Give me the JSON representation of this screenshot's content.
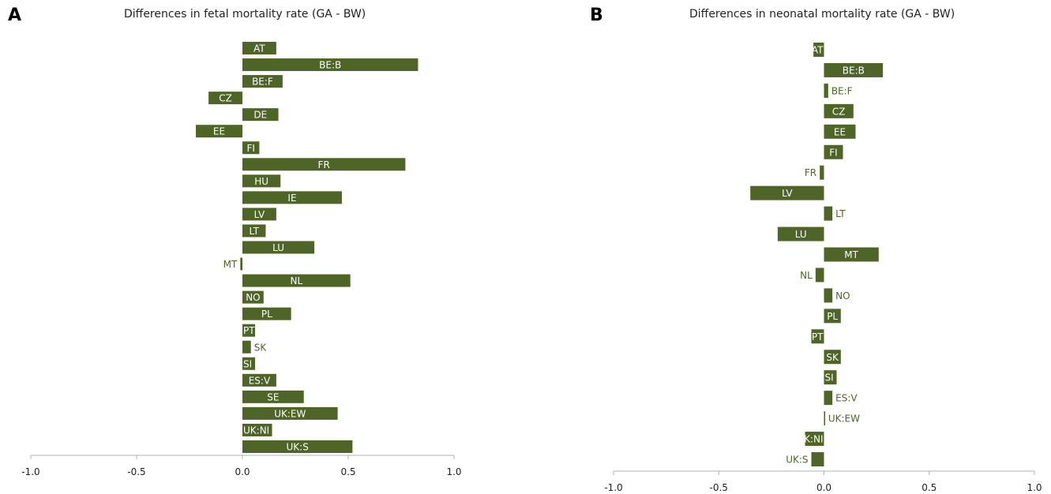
{
  "panels": [
    {
      "letter": "A",
      "title": "Differences in fetal mortality rate (GA - BW)"
    },
    {
      "letter": "B",
      "title": "Differences in neonatal mortality rate (GA - BW)"
    }
  ],
  "chart_data": [
    {
      "type": "bar",
      "orientation": "horizontal",
      "title": "Differences in fetal mortality rate (GA - BW)",
      "xlabel": "",
      "ylabel": "",
      "xlim": [
        -1.0,
        1.0
      ],
      "xticks": [
        "-1.0",
        "-0.5",
        "0.0",
        "0.5",
        "1.0"
      ],
      "xtick_values": [
        -1.0,
        -0.5,
        0.0,
        0.5,
        1.0
      ],
      "grid": false,
      "categories": [
        "AT",
        "BE:B",
        "BE:F",
        "CZ",
        "DE",
        "EE",
        "FI",
        "FR",
        "HU",
        "IE",
        "LV",
        "LT",
        "LU",
        "MT",
        "NL",
        "NO",
        "PL",
        "PT",
        "SK",
        "SI",
        "ES:V",
        "SE",
        "UK:EW",
        "UK:NI",
        "UK:S"
      ],
      "values": [
        0.16,
        0.83,
        0.19,
        -0.16,
        0.17,
        -0.22,
        0.08,
        0.77,
        0.18,
        0.47,
        0.16,
        0.11,
        0.34,
        -0.01,
        0.51,
        0.1,
        0.23,
        0.06,
        0.04,
        0.06,
        0.16,
        0.29,
        0.45,
        0.14,
        0.52
      ],
      "color": "#4e6527"
    },
    {
      "type": "bar",
      "orientation": "horizontal",
      "title": "Differences in neonatal mortality rate (GA - BW)",
      "xlabel": "",
      "ylabel": "",
      "xlim": [
        -1.0,
        1.0
      ],
      "xticks": [
        "-1.0",
        "-0.5",
        "0.0",
        "0.5",
        "1.0"
      ],
      "xtick_values": [
        -1.0,
        -0.5,
        0.0,
        0.5,
        1.0
      ],
      "grid": false,
      "categories": [
        "AT",
        "BE:B",
        "BE:F",
        "CZ",
        "EE",
        "FI",
        "FR",
        "LV",
        "LT",
        "LU",
        "MT",
        "NL",
        "NO",
        "PL",
        "PT",
        "SK",
        "SI",
        "ES:V",
        "UK:EW",
        "UK:NI",
        "UK:S"
      ],
      "values": [
        -0.05,
        0.28,
        0.02,
        0.14,
        0.15,
        0.09,
        -0.02,
        -0.35,
        0.04,
        -0.22,
        0.26,
        -0.04,
        0.04,
        0.08,
        -0.06,
        0.08,
        0.06,
        0.04,
        0.005,
        -0.09,
        -0.06
      ],
      "color": "#4e6527"
    }
  ]
}
